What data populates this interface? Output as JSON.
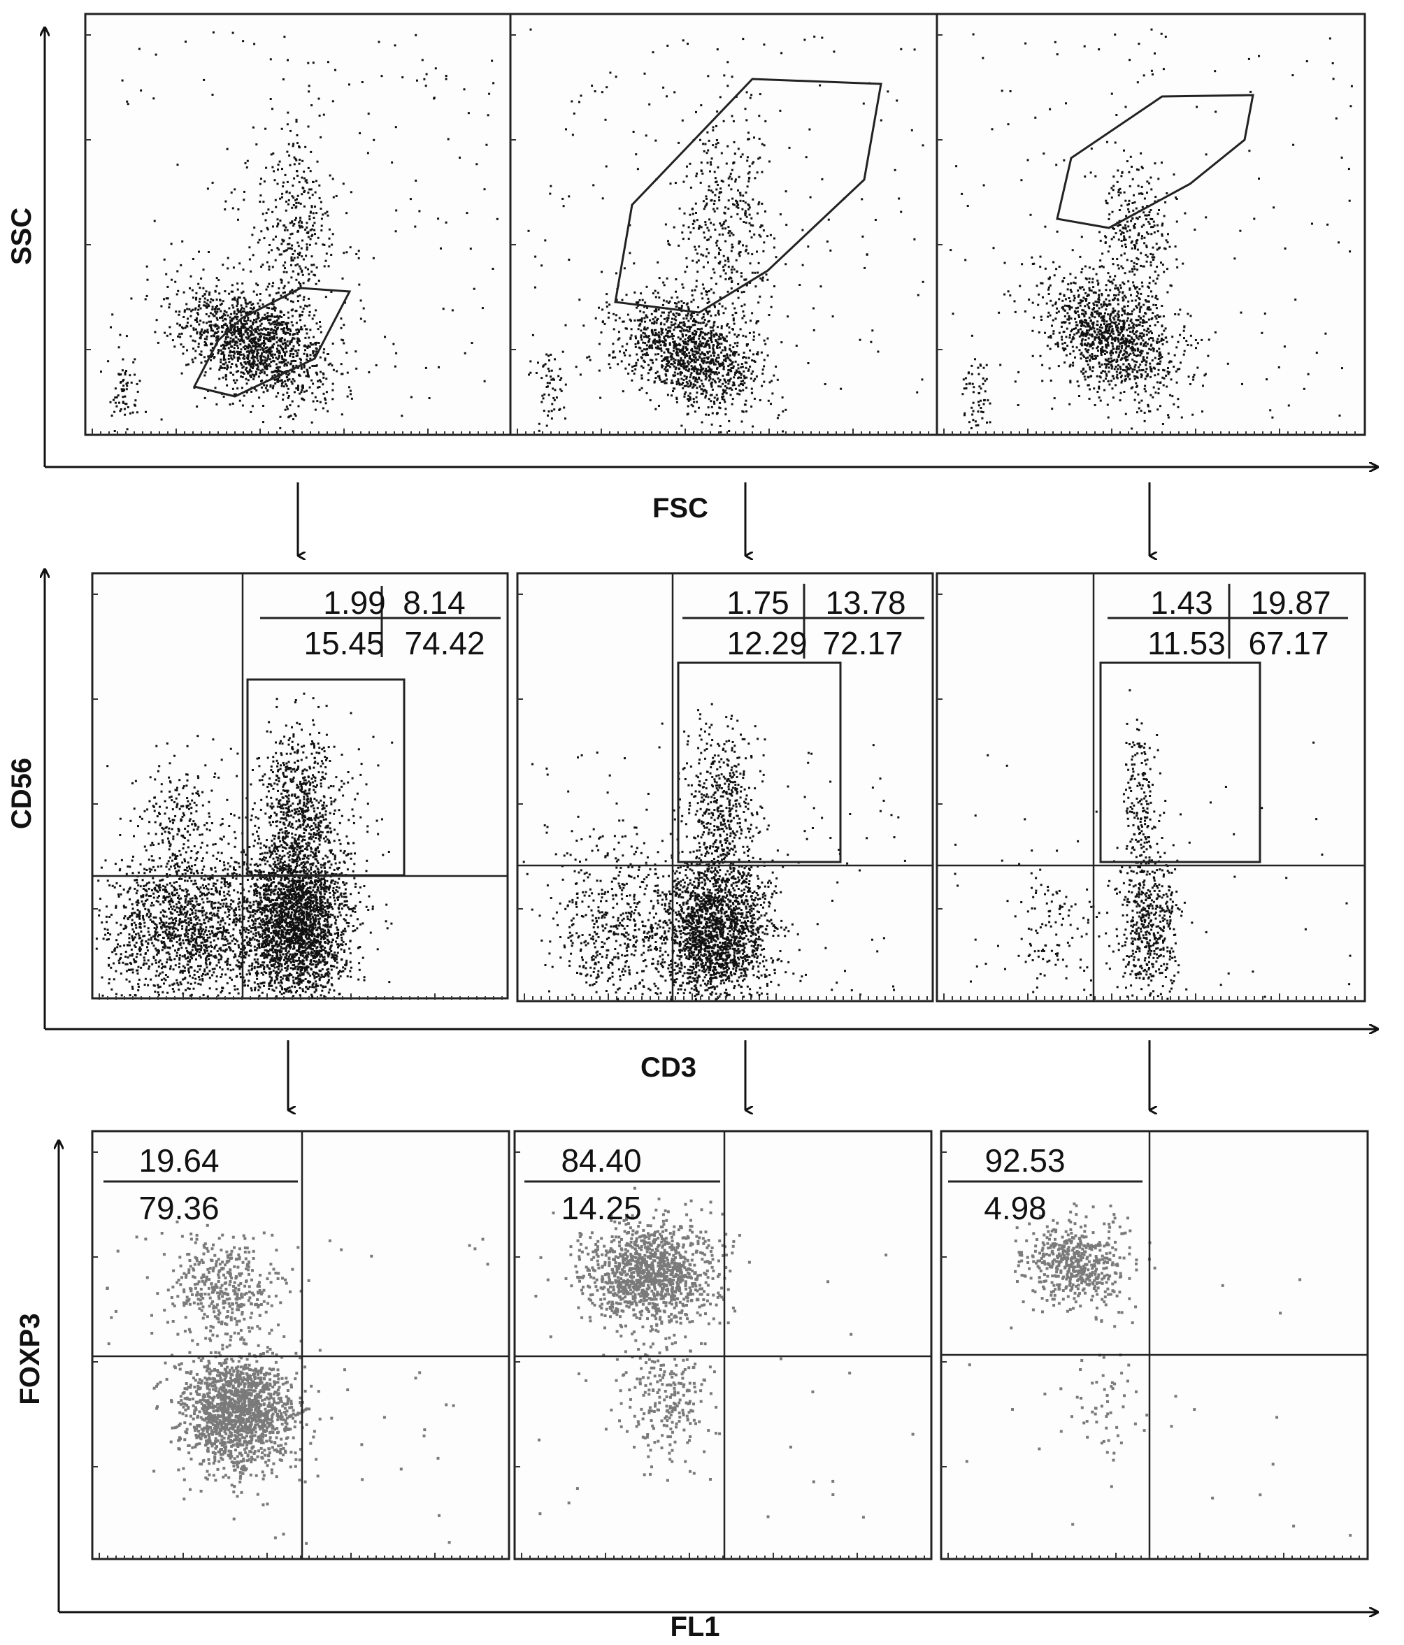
{
  "figure": {
    "colors": {
      "ink": "#111111",
      "dots_dark": "#111111",
      "dots_gray": "#7a7a7a",
      "frame": "#222222"
    }
  },
  "chart_data": [
    {
      "type": "scatter",
      "row": 1,
      "xlabel": "FSC",
      "ylabel": "SSC",
      "panels": [
        {
          "gate": "polygon",
          "quadrant_values": []
        },
        {
          "gate": "polygon",
          "quadrant_values": []
        },
        {
          "gate": "polygon",
          "quadrant_values": []
        }
      ]
    },
    {
      "type": "scatter",
      "row": 2,
      "xlabel": "CD3",
      "ylabel": "CD56",
      "panels": [
        {
          "gate": "rectangle",
          "quadrant_values": {
            "upper_left": "1.99",
            "upper_right": "8.14",
            "lower_left": "15.45",
            "lower_right": "74.42"
          }
        },
        {
          "gate": "rectangle",
          "quadrant_values": {
            "upper_left": "1.75",
            "upper_right": "13.78",
            "lower_left": "12.29",
            "lower_right": "72.17"
          }
        },
        {
          "gate": "rectangle",
          "quadrant_values": {
            "upper_left": "1.43",
            "upper_right": "19.87",
            "lower_left": "11.53",
            "lower_right": "67.17"
          }
        }
      ]
    },
    {
      "type": "scatter",
      "row": 3,
      "xlabel": "FL1",
      "ylabel": "FOXP3",
      "panels": [
        {
          "quadrant_values": {
            "upper_left": "19.64",
            "lower_left": "79.36"
          }
        },
        {
          "quadrant_values": {
            "upper_left": "84.40",
            "lower_left": "14.25"
          }
        },
        {
          "quadrant_values": {
            "upper_left": "92.53",
            "lower_left": "4.98"
          }
        }
      ]
    }
  ]
}
